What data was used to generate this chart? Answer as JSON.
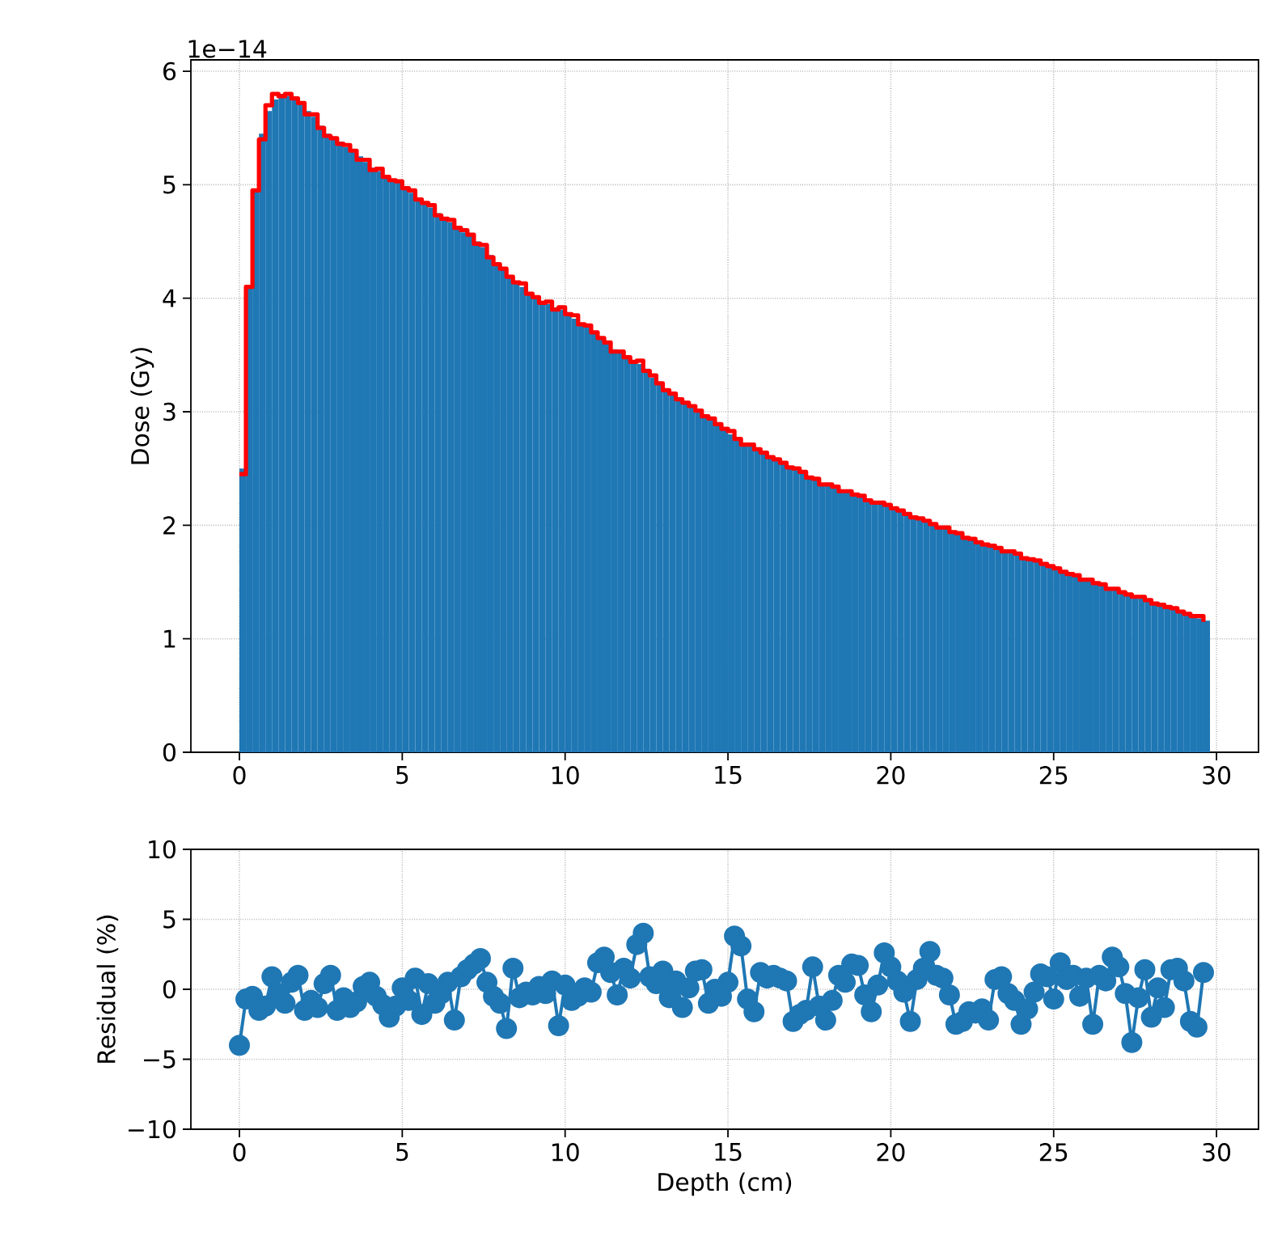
{
  "chart_data": [
    {
      "type": "histogram",
      "ylabel": "Dose (Gy)",
      "annotations": [
        "1e−14"
      ],
      "grid": true,
      "xlim": [
        -1.49,
        31.29
      ],
      "ylim": [
        0,
        6.1
      ],
      "xticks": [
        0,
        5,
        10,
        15,
        20,
        25,
        30
      ],
      "yticks": [
        0,
        1,
        2,
        3,
        4,
        5,
        6
      ],
      "bins": [
        0,
        0.2,
        0.4,
        0.6,
        0.8,
        1.0,
        1.2,
        1.4,
        1.6,
        1.8,
        2.0,
        2.2,
        2.4,
        2.6,
        2.8,
        3.0,
        3.2,
        3.4,
        3.6,
        3.8,
        4.0,
        4.2,
        4.4,
        4.6,
        4.8,
        5.0,
        5.2,
        5.4,
        5.6,
        5.8,
        6.0,
        6.2,
        6.4,
        6.6,
        6.8,
        7.0,
        7.2,
        7.4,
        7.6,
        7.8,
        8.0,
        8.2,
        8.4,
        8.6,
        8.8,
        9.0,
        9.2,
        9.4,
        9.6,
        9.8,
        10.0,
        10.2,
        10.4,
        10.6,
        10.8,
        11.0,
        11.2,
        11.4,
        11.6,
        11.8,
        12.0,
        12.2,
        12.4,
        12.6,
        12.8,
        13.0,
        13.2,
        13.4,
        13.6,
        13.8,
        14.0,
        14.2,
        14.4,
        14.6,
        14.8,
        15.0,
        15.2,
        15.4,
        15.6,
        15.8,
        16.0,
        16.2,
        16.4,
        16.6,
        16.8,
        17.0,
        17.2,
        17.4,
        17.6,
        17.8,
        18.0,
        18.2,
        18.4,
        18.6,
        18.8,
        19.0,
        19.2,
        19.4,
        19.6,
        19.8,
        20.0,
        20.2,
        20.4,
        20.6,
        20.8,
        21.0,
        21.2,
        21.4,
        21.6,
        21.8,
        22.0,
        22.2,
        22.4,
        22.6,
        22.8,
        23.0,
        23.2,
        23.4,
        23.6,
        23.8,
        24.0,
        24.2,
        24.4,
        24.6,
        24.8,
        25.0,
        25.2,
        25.4,
        25.6,
        25.8,
        26.0,
        26.2,
        26.4,
        26.6,
        26.8,
        27.0,
        27.2,
        27.4,
        27.6,
        27.8,
        28.0,
        28.2,
        28.4,
        28.6,
        28.8,
        29.0,
        29.2,
        29.4,
        29.6,
        29.8
      ],
      "series": [
        {
          "type": "histogram",
          "color": "#1f77b4",
          "values": [
            2.5,
            4.1,
            4.95,
            5.45,
            5.65,
            5.75,
            5.8,
            5.78,
            5.76,
            5.73,
            5.65,
            5.6,
            5.52,
            5.45,
            5.4,
            5.38,
            5.33,
            5.3,
            5.25,
            5.2,
            5.15,
            5.12,
            5.08,
            5.05,
            5.02,
            4.98,
            4.93,
            4.88,
            4.84,
            4.8,
            4.75,
            4.7,
            4.67,
            4.63,
            4.58,
            4.55,
            4.5,
            4.45,
            4.38,
            4.3,
            4.25,
            4.2,
            4.15,
            4.1,
            4.05,
            4.0,
            3.97,
            3.95,
            3.92,
            3.9,
            3.87,
            3.82,
            3.78,
            3.75,
            3.7,
            3.65,
            3.6,
            3.55,
            3.52,
            3.48,
            3.45,
            3.42,
            3.38,
            3.3,
            3.25,
            3.2,
            3.15,
            3.12,
            3.08,
            3.05,
            3.0,
            2.97,
            2.93,
            2.9,
            2.85,
            2.8,
            2.76,
            2.72,
            2.7,
            2.67,
            2.63,
            2.6,
            2.58,
            2.55,
            2.52,
            2.5,
            2.46,
            2.43,
            2.4,
            2.37,
            2.35,
            2.33,
            2.31,
            2.29,
            2.27,
            2.25,
            2.23,
            2.21,
            2.19,
            2.17,
            2.15,
            2.12,
            2.1,
            2.07,
            2.05,
            2.03,
            2.01,
            1.99,
            1.97,
            1.95,
            1.93,
            1.9,
            1.88,
            1.86,
            1.84,
            1.82,
            1.8,
            1.78,
            1.76,
            1.74,
            1.72,
            1.7,
            1.68,
            1.66,
            1.63,
            1.61,
            1.59,
            1.57,
            1.55,
            1.53,
            1.51,
            1.49,
            1.47,
            1.45,
            1.43,
            1.41,
            1.39,
            1.37,
            1.36,
            1.34,
            1.32,
            1.3,
            1.28,
            1.26,
            1.24,
            1.22,
            1.2,
            1.18,
            1.16
          ]
        },
        {
          "type": "step",
          "color": "#ff0000",
          "x": [
            0,
            0.2,
            0.4,
            0.6,
            0.8,
            1.0,
            1.2,
            1.4,
            1.6,
            1.8,
            2.0,
            2.2,
            2.4,
            2.6,
            2.8,
            3.0,
            3.2,
            3.4,
            3.6,
            3.8,
            4.0,
            4.2,
            4.4,
            4.6,
            4.8,
            5.0,
            5.2,
            5.4,
            5.6,
            5.8,
            6.0,
            6.2,
            6.4,
            6.6,
            6.8,
            7.0,
            7.2,
            7.4,
            7.6,
            7.8,
            8.0,
            8.2,
            8.4,
            8.6,
            8.8,
            9.0,
            9.2,
            9.4,
            9.6,
            9.8,
            10.0,
            10.2,
            10.4,
            10.6,
            10.8,
            11.0,
            11.2,
            11.4,
            11.6,
            11.8,
            12.0,
            12.2,
            12.4,
            12.6,
            12.8,
            13.0,
            13.2,
            13.4,
            13.6,
            13.8,
            14.0,
            14.2,
            14.4,
            14.6,
            14.8,
            15.0,
            15.2,
            15.4,
            15.6,
            15.8,
            16.0,
            16.2,
            16.4,
            16.6,
            16.8,
            17.0,
            17.2,
            17.4,
            17.6,
            17.8,
            18.0,
            18.2,
            18.4,
            18.6,
            18.8,
            19.0,
            19.2,
            19.4,
            19.6,
            19.8,
            20.0,
            20.2,
            20.4,
            20.6,
            20.8,
            21.0,
            21.2,
            21.4,
            21.6,
            21.8,
            22.0,
            22.2,
            22.4,
            22.6,
            22.8,
            23.0,
            23.2,
            23.4,
            23.6,
            23.8,
            24.0,
            24.2,
            24.4,
            24.6,
            24.8,
            25.0,
            25.2,
            25.4,
            25.6,
            25.8,
            26.0,
            26.2,
            26.4,
            26.6,
            26.8,
            27.0,
            27.2,
            27.4,
            27.6,
            27.8,
            28.0,
            28.2,
            28.4,
            28.6,
            28.8,
            29.0,
            29.2,
            29.4,
            29.6
          ],
          "values": [
            2.45,
            4.1,
            4.95,
            5.4,
            5.7,
            5.8,
            5.78,
            5.8,
            5.76,
            5.72,
            5.62,
            5.62,
            5.5,
            5.43,
            5.41,
            5.36,
            5.35,
            5.3,
            5.22,
            5.22,
            5.13,
            5.14,
            5.07,
            5.04,
            5.03,
            4.97,
            4.95,
            4.87,
            4.84,
            4.82,
            4.73,
            4.7,
            4.69,
            4.62,
            4.6,
            4.56,
            4.48,
            4.47,
            4.36,
            4.3,
            4.26,
            4.19,
            4.14,
            4.13,
            4.04,
            4.01,
            3.96,
            3.97,
            3.9,
            3.92,
            3.86,
            3.85,
            3.77,
            3.76,
            3.7,
            3.65,
            3.61,
            3.53,
            3.53,
            3.48,
            3.44,
            3.45,
            3.36,
            3.32,
            3.25,
            3.19,
            3.16,
            3.11,
            3.08,
            3.05,
            3.01,
            2.96,
            2.94,
            2.89,
            2.85,
            2.83,
            2.76,
            2.71,
            2.71,
            2.67,
            2.64,
            2.6,
            2.58,
            2.55,
            2.51,
            2.5,
            2.47,
            2.42,
            2.41,
            2.36,
            2.36,
            2.34,
            2.3,
            2.3,
            2.27,
            2.26,
            2.22,
            2.2,
            2.2,
            2.18,
            2.15,
            2.13,
            2.1,
            2.07,
            2.06,
            2.04,
            2.01,
            1.98,
            1.98,
            1.94,
            1.93,
            1.89,
            1.88,
            1.85,
            1.83,
            1.82,
            1.8,
            1.77,
            1.77,
            1.75,
            1.71,
            1.7,
            1.69,
            1.66,
            1.64,
            1.62,
            1.59,
            1.57,
            1.56,
            1.52,
            1.52,
            1.49,
            1.48,
            1.44,
            1.44,
            1.41,
            1.39,
            1.37,
            1.37,
            1.34,
            1.31,
            1.3,
            1.28,
            1.27,
            1.24,
            1.22,
            1.2,
            1.2,
            1.15
          ]
        }
      ]
    },
    {
      "type": "line",
      "xlabel": "Depth (cm)",
      "ylabel": "Residual (%)",
      "grid": true,
      "marker": "circle",
      "color": "#1f77b4",
      "xlim": [
        -1.49,
        31.29
      ],
      "ylim": [
        -10,
        10
      ],
      "xticks": [
        0,
        5,
        10,
        15,
        20,
        25,
        30
      ],
      "yticks": [
        {
          "value": -10,
          "label": "−10"
        },
        {
          "value": -5,
          "label": "−5"
        },
        0,
        5,
        10
      ],
      "x": [
        0,
        0.2,
        0.4,
        0.6,
        0.8,
        1.0,
        1.2,
        1.4,
        1.6,
        1.8,
        2.0,
        2.2,
        2.4,
        2.6,
        2.8,
        3.0,
        3.2,
        3.4,
        3.6,
        3.8,
        4.0,
        4.2,
        4.4,
        4.6,
        4.8,
        5.0,
        5.2,
        5.4,
        5.6,
        5.8,
        6.0,
        6.2,
        6.4,
        6.6,
        6.8,
        7.0,
        7.2,
        7.4,
        7.6,
        7.8,
        8.0,
        8.2,
        8.4,
        8.6,
        8.8,
        9.0,
        9.2,
        9.4,
        9.6,
        9.8,
        10.0,
        10.2,
        10.4,
        10.6,
        10.8,
        11.0,
        11.2,
        11.4,
        11.6,
        11.8,
        12.0,
        12.2,
        12.4,
        12.6,
        12.8,
        13.0,
        13.2,
        13.4,
        13.6,
        13.8,
        14.0,
        14.2,
        14.4,
        14.6,
        14.8,
        15.0,
        15.2,
        15.4,
        15.6,
        15.8,
        16.0,
        16.2,
        16.4,
        16.6,
        16.8,
        17.0,
        17.2,
        17.4,
        17.6,
        17.8,
        18.0,
        18.2,
        18.4,
        18.6,
        18.8,
        19.0,
        19.2,
        19.4,
        19.6,
        19.8,
        20.0,
        20.2,
        20.4,
        20.6,
        20.8,
        21.0,
        21.2,
        21.4,
        21.6,
        21.8,
        22.0,
        22.2,
        22.4,
        22.6,
        22.8,
        23.0,
        23.2,
        23.4,
        23.6,
        23.8,
        24.0,
        24.2,
        24.4,
        24.6,
        24.8,
        25.0,
        25.2,
        25.4,
        25.6,
        25.8,
        26.0,
        26.2,
        26.4,
        26.6,
        26.8,
        27.0,
        27.2,
        27.4,
        27.6,
        27.8,
        28.0,
        28.2,
        28.4,
        28.6,
        28.8,
        29.0,
        29.2,
        29.4,
        29.6
      ],
      "values": [
        -4.0,
        -0.7,
        -0.5,
        -1.5,
        -1.2,
        0.9,
        -0.3,
        -1.0,
        0.5,
        1.0,
        -1.5,
        -0.8,
        -1.3,
        0.4,
        1.0,
        -1.5,
        -0.6,
        -1.3,
        -0.9,
        0.2,
        0.5,
        -0.5,
        -1.1,
        -2.0,
        -1.2,
        0.1,
        -0.8,
        0.8,
        -1.8,
        0.4,
        -1.0,
        -0.3,
        0.5,
        -2.2,
        0.9,
        1.4,
        1.8,
        2.2,
        0.5,
        -0.5,
        -1.0,
        -2.8,
        1.5,
        -0.6,
        -0.2,
        -0.4,
        0.2,
        -0.3,
        0.6,
        -2.6,
        0.3,
        -0.8,
        -0.5,
        0.1,
        -0.2,
        1.9,
        2.3,
        1.2,
        -0.4,
        1.5,
        0.8,
        3.2,
        4.0,
        0.9,
        0.4,
        1.3,
        -0.6,
        0.6,
        -1.3,
        0.1,
        1.3,
        1.4,
        -1.0,
        0.0,
        -0.5,
        0.5,
        3.8,
        3.1,
        -0.7,
        -1.6,
        1.2,
        0.8,
        1.0,
        0.8,
        0.6,
        -2.3,
        -1.8,
        -1.5,
        1.6,
        -1.2,
        -2.2,
        -0.8,
        1.0,
        0.5,
        1.8,
        1.7,
        -0.4,
        -1.6,
        0.3,
        2.6,
        1.6,
        0.6,
        -0.2,
        -2.3,
        0.7,
        1.5,
        2.7,
        1.0,
        0.8,
        -0.4,
        -2.5,
        -2.3,
        -1.6,
        -1.7,
        -1.4,
        -2.2,
        0.7,
        0.9,
        -0.3,
        -0.8,
        -2.5,
        -1.4,
        -0.2,
        1.1,
        0.9,
        -0.7,
        1.9,
        0.7,
        1.0,
        -0.5,
        0.8,
        -2.5,
        1.0,
        0.6,
        2.3,
        1.6,
        -0.3,
        -3.8,
        -0.6,
        1.4,
        -2.0,
        0.1,
        -1.3,
        1.4,
        1.5,
        0.6,
        -2.3,
        -2.7,
        1.2
      ]
    }
  ]
}
